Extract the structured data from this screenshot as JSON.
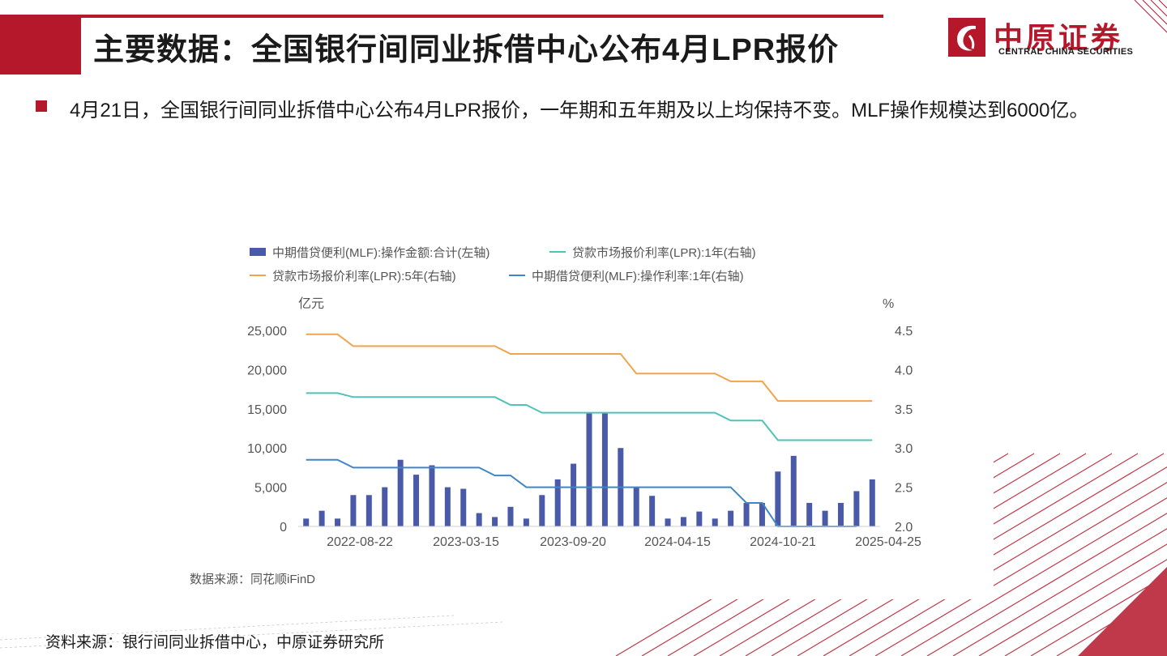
{
  "header": {
    "title": "主要数据：全国银行间同业拆借中心公布4月LPR报价"
  },
  "logo": {
    "cn": "中原证券",
    "en": "CENTRAL CHINA SECURITIES"
  },
  "bullet": {
    "text": "4月21日，全国银行间同业拆借中心公布4月LPR报价，一年期和五年期及以上均保持不变。MLF操作规模达到6000亿。"
  },
  "footer": {
    "source": "资料来源：银行间同业拆借中心，中原证券研究所"
  },
  "colors": {
    "brand": "#b5172b",
    "bar": "#4a5aa8",
    "lpr1": "#4fc3b8",
    "lpr5": "#f0a44c",
    "mlf_rate": "#3f86c8"
  },
  "chart_data": {
    "type": "bar",
    "legend": [
      "中期借贷便利(MLF):操作金额:合计(左轴)",
      "贷款市场报价利率(LPR):1年(右轴)",
      "贷款市场报价利率(LPR):5年(右轴)",
      "中期借贷便利(MLF):操作利率:1年(右轴)"
    ],
    "left_axis": {
      "unit": "亿元",
      "ticks": [
        "25,000",
        "20,000",
        "15,000",
        "10,000",
        "5,000",
        "0"
      ],
      "ylim": [
        0,
        25000
      ]
    },
    "right_axis": {
      "unit": "%",
      "ticks": [
        "4.5",
        "4.0",
        "3.5",
        "3.0",
        "2.5",
        "2.0"
      ],
      "ylim": [
        2.0,
        4.5
      ]
    },
    "x_ticks": [
      "2022-08-22",
      "2023-03-15",
      "2023-09-20",
      "2024-04-15",
      "2024-10-21",
      "2025-04-25"
    ],
    "source_note": "数据来源：同花顺iFinD",
    "bars": [
      1000,
      2000,
      1000,
      4000,
      4000,
      5000,
      8500,
      6600,
      7800,
      5000,
      4800,
      1700,
      1200,
      2500,
      1000,
      4000,
      6000,
      8000,
      14500,
      14500,
      10000,
      5000,
      3900,
      1000,
      1200,
      1900,
      1000,
      2000,
      3000,
      3000,
      7000,
      9000,
      3000,
      2000,
      3000,
      4500,
      6000
    ],
    "lpr1": [
      3.7,
      3.7,
      3.7,
      3.65,
      3.65,
      3.65,
      3.65,
      3.65,
      3.65,
      3.65,
      3.65,
      3.65,
      3.65,
      3.55,
      3.55,
      3.45,
      3.45,
      3.45,
      3.45,
      3.45,
      3.45,
      3.45,
      3.45,
      3.45,
      3.45,
      3.45,
      3.45,
      3.35,
      3.35,
      3.35,
      3.1,
      3.1,
      3.1,
      3.1,
      3.1,
      3.1,
      3.1
    ],
    "lpr5": [
      4.45,
      4.45,
      4.45,
      4.3,
      4.3,
      4.3,
      4.3,
      4.3,
      4.3,
      4.3,
      4.3,
      4.3,
      4.3,
      4.2,
      4.2,
      4.2,
      4.2,
      4.2,
      4.2,
      4.2,
      4.2,
      3.95,
      3.95,
      3.95,
      3.95,
      3.95,
      3.95,
      3.85,
      3.85,
      3.85,
      3.6,
      3.6,
      3.6,
      3.6,
      3.6,
      3.6,
      3.6
    ],
    "mlf_rate": [
      2.85,
      2.85,
      2.85,
      2.75,
      2.75,
      2.75,
      2.75,
      2.75,
      2.75,
      2.75,
      2.75,
      2.75,
      2.65,
      2.65,
      2.5,
      2.5,
      2.5,
      2.5,
      2.5,
      2.5,
      2.5,
      2.5,
      2.5,
      2.5,
      2.5,
      2.5,
      2.5,
      2.5,
      2.3,
      2.3,
      2.0,
      2.0,
      2.0,
      2.0,
      2.0,
      2.0,
      null
    ]
  }
}
